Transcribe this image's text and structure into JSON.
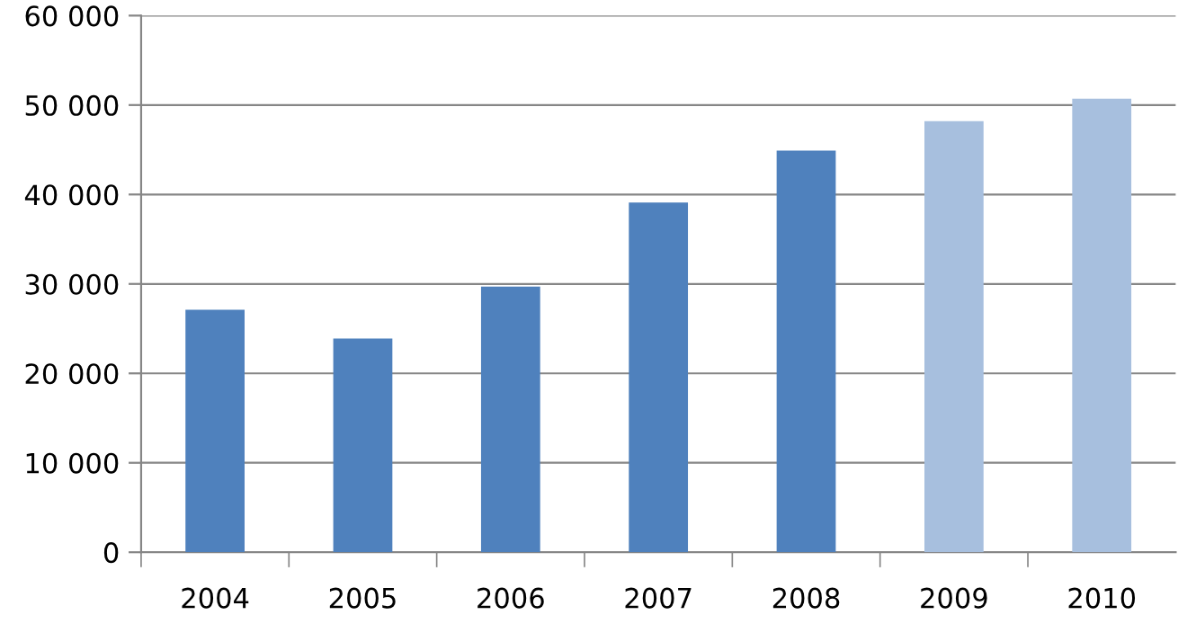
{
  "chart_data": {
    "type": "bar",
    "categories": [
      "2004",
      "2005",
      "2006",
      "2007",
      "2008",
      "2009",
      "2010"
    ],
    "values": [
      27100,
      23900,
      29700,
      39100,
      44900,
      48200,
      50700
    ],
    "colors": [
      "#4f81bd",
      "#4f81bd",
      "#4f81bd",
      "#4f81bd",
      "#4f81bd",
      "#a7bfde",
      "#a7bfde"
    ],
    "ylim": [
      0,
      60000
    ],
    "yticks": [
      {
        "value": 0,
        "label": "0"
      },
      {
        "value": 10000,
        "label": "10 000"
      },
      {
        "value": 20000,
        "label": "20 000"
      },
      {
        "value": 30000,
        "label": "30 000"
      },
      {
        "value": 40000,
        "label": "40 000"
      },
      {
        "value": 50000,
        "label": "50 000"
      },
      {
        "value": 60000,
        "label": "60 000"
      }
    ],
    "grid": "y"
  }
}
